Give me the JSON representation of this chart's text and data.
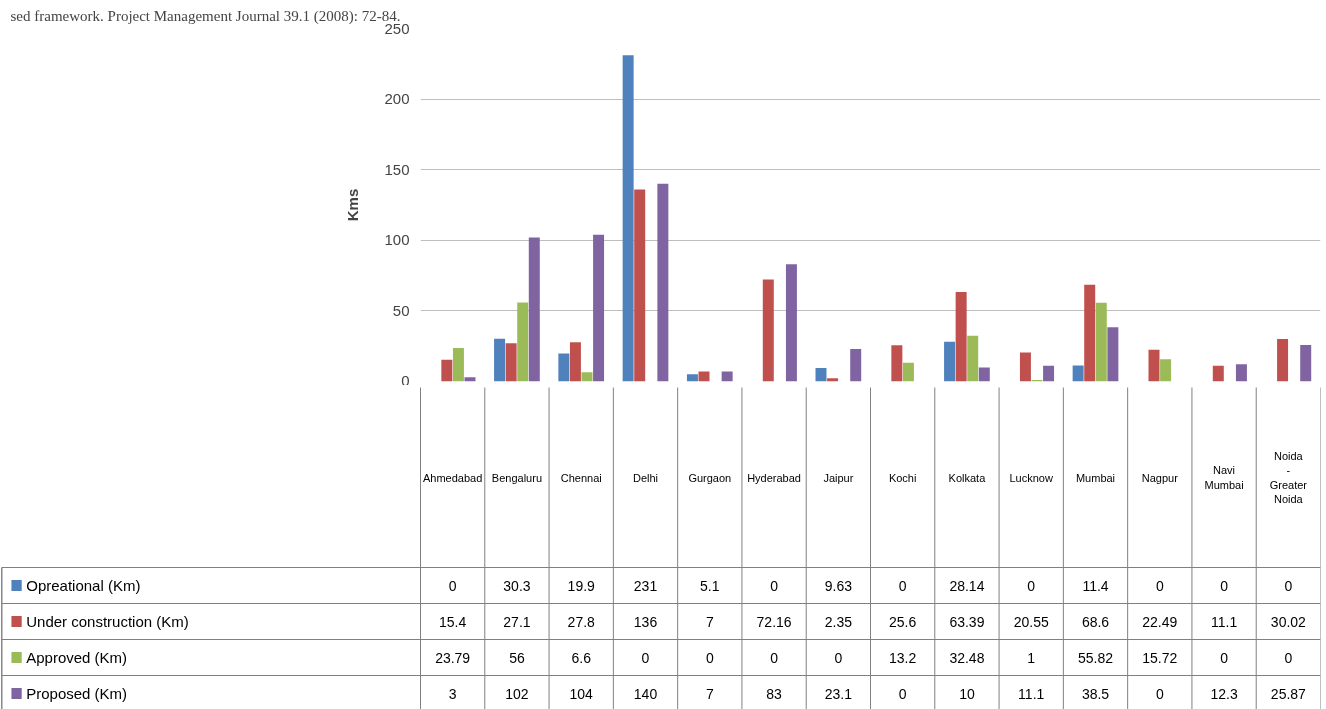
{
  "chart_data": {
    "type": "bar",
    "ylabel": "Kms",
    "annotations": [
      "sed framework.  Project Management Journal 39.1 (2008): 72-84."
    ],
    "categories": [
      "Ahmedabad",
      "Bengaluru",
      "Chennai",
      "Delhi",
      "Gurgaon",
      "Hyderabad",
      "Jaipur",
      "Kochi",
      "Kolkata",
      "Lucknow",
      "Mumbai",
      "Nagpur",
      "Navi Mumbai",
      "Noida - Greater Noida"
    ],
    "series": [
      {
        "name": "Opreational (Km)",
        "color": "#4f81bd",
        "values": [
          0,
          30.3,
          19.9,
          231,
          5.1,
          0,
          9.63,
          0,
          28.14,
          0,
          11.4,
          0,
          0,
          0
        ]
      },
      {
        "name": "Under construction (Km)",
        "color": "#c0504d",
        "values": [
          15.4,
          27.1,
          27.8,
          136,
          7,
          72.16,
          2.35,
          25.6,
          63.39,
          20.55,
          68.6,
          22.49,
          11.1,
          30.02
        ]
      },
      {
        "name": "Approved (Km)",
        "color": "#9bbb59",
        "values": [
          23.79,
          56,
          6.6,
          0,
          0,
          0,
          0,
          13.2,
          32.48,
          1,
          55.82,
          15.72,
          0,
          0
        ]
      },
      {
        "name": "Proposed (Km)",
        "color": "#8064a2",
        "values": [
          3,
          102,
          104,
          140,
          7,
          83,
          23.1,
          0,
          10,
          11.1,
          38.5,
          0,
          12.3,
          25.87
        ]
      }
    ],
    "ylim": [
      0,
      250
    ],
    "yticks": [
      0,
      50,
      100,
      150,
      200,
      250
    ],
    "grid": "y",
    "legend": "left",
    "data_labels": true
  }
}
